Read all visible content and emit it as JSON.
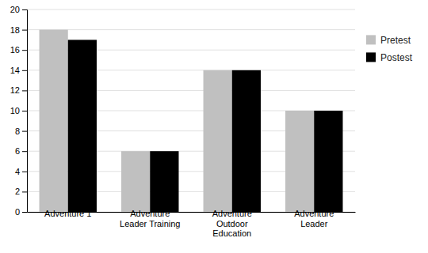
{
  "chart_data": {
    "type": "bar",
    "categories": [
      "Adventure 1",
      "Adventure\nLeader Training",
      "Adventure\nOutdoor\nEducation",
      "Adventure\nLeader"
    ],
    "series": [
      {
        "name": "Pretest",
        "color": "#c0c0c0",
        "values": [
          18,
          6,
          14,
          10
        ]
      },
      {
        "name": "Postest",
        "color": "#000000",
        "values": [
          17,
          6,
          14,
          10
        ]
      }
    ],
    "ylim": [
      0,
      20
    ],
    "yticks": [
      0,
      2,
      4,
      6,
      8,
      10,
      12,
      14,
      16,
      18,
      20
    ],
    "grid": true,
    "legend": "right"
  }
}
